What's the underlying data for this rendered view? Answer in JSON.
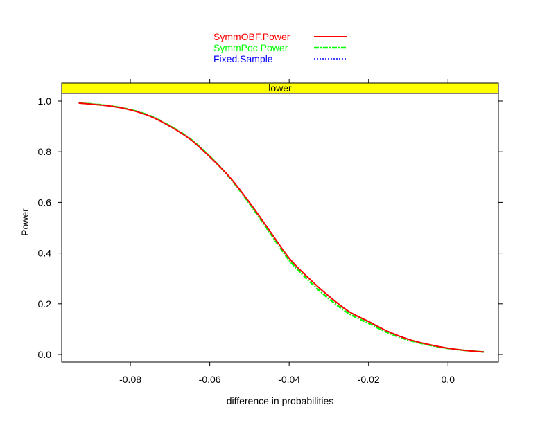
{
  "chart_data": {
    "type": "line",
    "panel_label": "lower",
    "xlabel": "difference in probabilities",
    "ylabel": "Power",
    "xlim": [
      -0.0973,
      0.0127
    ],
    "ylim": [
      -0.03,
      1.03
    ],
    "x_ticks": [
      -0.08,
      -0.06,
      -0.04,
      -0.02,
      0.0
    ],
    "x_tick_labels": [
      "-0.08",
      "-0.06",
      "-0.04",
      "-0.02",
      "0.0"
    ],
    "y_ticks": [
      0.0,
      0.2,
      0.4,
      0.6,
      0.8,
      1.0
    ],
    "y_tick_labels": [
      "0.0",
      "0.2",
      "0.4",
      "0.6",
      "0.8",
      "1.0"
    ],
    "legend_position": "top-center",
    "grid": false,
    "colors": {
      "strip": "#ffff00",
      "axis": "#000000"
    },
    "x": [
      -0.093,
      -0.09,
      -0.085,
      -0.08,
      -0.075,
      -0.07,
      -0.065,
      -0.06,
      -0.055,
      -0.05,
      -0.045,
      -0.04,
      -0.035,
      -0.03,
      -0.025,
      -0.02,
      -0.015,
      -0.01,
      -0.005,
      0.0,
      0.005,
      0.009
    ],
    "series": [
      {
        "name": "SymmOBF.Power",
        "color": "#ff0000",
        "style": "solid",
        "values": [
          0.992,
          0.988,
          0.98,
          0.965,
          0.94,
          0.9,
          0.85,
          0.78,
          0.7,
          0.6,
          0.49,
          0.38,
          0.3,
          0.23,
          0.17,
          0.13,
          0.09,
          0.06,
          0.04,
          0.025,
          0.015,
          0.01
        ]
      },
      {
        "name": "SymmPoc.Power",
        "color": "#00ff00",
        "style": "dashdot",
        "values": [
          0.993,
          0.989,
          0.981,
          0.966,
          0.942,
          0.902,
          0.852,
          0.782,
          0.698,
          0.595,
          0.483,
          0.372,
          0.29,
          0.22,
          0.162,
          0.123,
          0.085,
          0.057,
          0.038,
          0.024,
          0.015,
          0.01
        ]
      },
      {
        "name": "Fixed.Sample",
        "color": "#0000ff",
        "style": "dotted",
        "values": [
          0.992,
          0.988,
          0.98,
          0.965,
          0.94,
          0.9,
          0.85,
          0.78,
          0.7,
          0.6,
          0.49,
          0.38,
          0.3,
          0.23,
          0.17,
          0.13,
          0.09,
          0.06,
          0.04,
          0.025,
          0.015,
          0.01
        ]
      }
    ]
  }
}
